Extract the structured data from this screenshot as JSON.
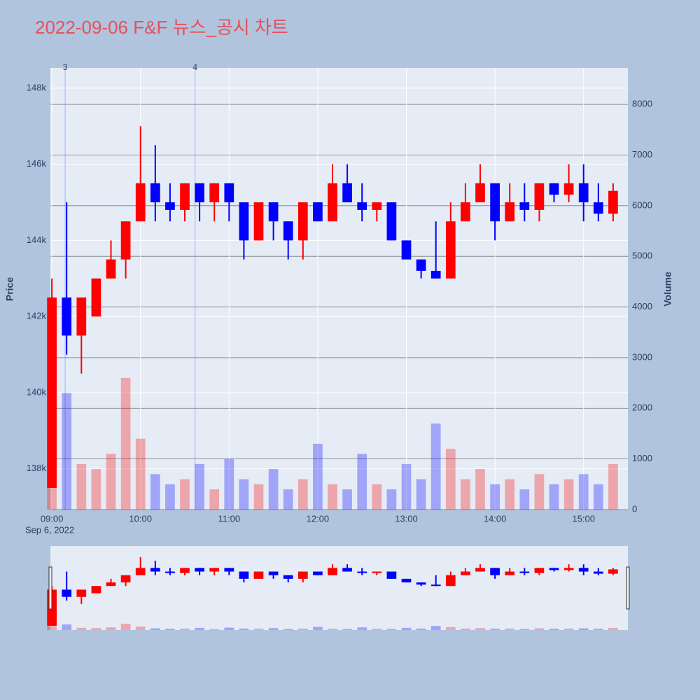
{
  "chart_data": {
    "type": "candlestick",
    "title": "2022-09-06 F&F 뉴스_공시 차트",
    "x_date_label": "Sep 6, 2022",
    "y_title": "Price",
    "y2_title": "Volume",
    "x": [
      "09:00",
      "09:10",
      "09:20",
      "09:30",
      "09:40",
      "09:50",
      "10:00",
      "10:10",
      "10:20",
      "10:30",
      "10:40",
      "10:50",
      "11:00",
      "11:10",
      "11:20",
      "11:30",
      "11:40",
      "11:50",
      "12:00",
      "12:10",
      "12:20",
      "12:30",
      "12:40",
      "12:50",
      "13:00",
      "13:10",
      "13:20",
      "13:30",
      "13:40",
      "13:50",
      "14:00",
      "14:10",
      "14:20",
      "14:30",
      "14:40",
      "14:50",
      "15:00",
      "15:10",
      "15:20"
    ],
    "open": [
      137500,
      142500,
      141500,
      142000,
      143000,
      143500,
      144500,
      145500,
      145000,
      144800,
      145500,
      145000,
      145500,
      145000,
      144000,
      145000,
      144500,
      144000,
      145000,
      144500,
      145500,
      145000,
      144800,
      145000,
      144000,
      143500,
      143200,
      143000,
      144500,
      145000,
      145500,
      144500,
      145000,
      144800,
      145500,
      145200,
      145500,
      145000,
      144700
    ],
    "high": [
      143000,
      145000,
      142500,
      143000,
      144000,
      144500,
      147000,
      146500,
      145500,
      145500,
      145500,
      145500,
      145500,
      145000,
      145000,
      145000,
      144500,
      145000,
      145000,
      146000,
      146000,
      145500,
      145000,
      145000,
      144000,
      143500,
      144500,
      145000,
      145500,
      146000,
      145500,
      145500,
      145500,
      145500,
      145500,
      146000,
      146000,
      145500,
      145500
    ],
    "low": [
      137500,
      141000,
      140500,
      142000,
      143000,
      143000,
      144500,
      144500,
      144500,
      144500,
      144500,
      144500,
      144500,
      143500,
      144000,
      144000,
      143500,
      143500,
      144500,
      144500,
      145000,
      144500,
      144500,
      144000,
      143500,
      143000,
      143000,
      143000,
      144500,
      145000,
      144000,
      144500,
      144500,
      144500,
      145000,
      145000,
      144500,
      144500,
      144500
    ],
    "close": [
      142500,
      141500,
      142500,
      143000,
      143500,
      144500,
      145500,
      145000,
      144800,
      145500,
      145000,
      145500,
      145000,
      144000,
      145000,
      144500,
      144000,
      145000,
      144500,
      145500,
      145000,
      144800,
      145000,
      144000,
      143500,
      143200,
      143000,
      144500,
      145000,
      145500,
      144500,
      145000,
      144800,
      145500,
      145200,
      145500,
      145000,
      144700,
      145300
    ],
    "volume": [
      1500,
      2300,
      900,
      800,
      1100,
      2600,
      1400,
      700,
      500,
      600,
      900,
      400,
      1000,
      600,
      500,
      800,
      400,
      600,
      1300,
      500,
      400,
      1100,
      500,
      400,
      900,
      600,
      1700,
      1200,
      600,
      800,
      500,
      600,
      400,
      700,
      500,
      600,
      700,
      500,
      900
    ],
    "increasing_color": "#ff0000",
    "decreasing_color": "#0000ff",
    "xlim": [
      "08:59",
      "15:30"
    ],
    "xticks": [
      "09:00",
      "10:00",
      "11:00",
      "12:00",
      "13:00",
      "14:00",
      "15:00"
    ],
    "ylim": [
      136930,
      148530
    ],
    "yticks": [
      {
        "value": 138000,
        "label": "138k"
      },
      {
        "value": 140000,
        "label": "140k"
      },
      {
        "value": 142000,
        "label": "142k"
      },
      {
        "value": 144000,
        "label": "144k"
      },
      {
        "value": 146000,
        "label": "146k"
      },
      {
        "value": 148000,
        "label": "148k"
      }
    ],
    "y2lim": [
      0,
      8720
    ],
    "y2ticks": [
      0,
      1000,
      2000,
      3000,
      4000,
      5000,
      6000,
      7000,
      8000
    ],
    "annotations": [
      {
        "x": "09:09",
        "text": "3"
      },
      {
        "x": "10:37",
        "text": "4"
      }
    ],
    "rangeslider": true
  }
}
